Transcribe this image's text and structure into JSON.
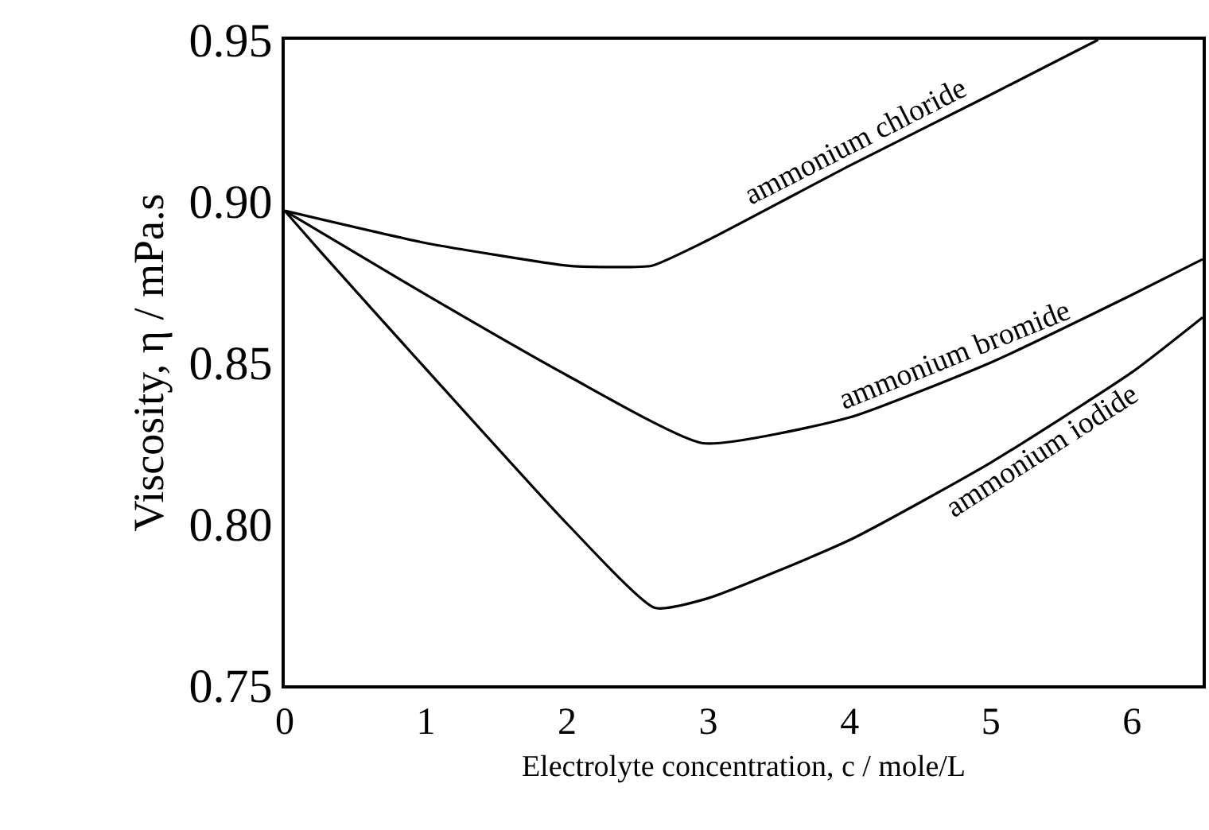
{
  "chart_data": {
    "type": "line",
    "xlabel": "Electrolyte concentration, c / mole/L",
    "ylabel": "Viscosity, η / mPa.s",
    "xlim": [
      0,
      6.5
    ],
    "xticks": [
      0,
      1,
      2,
      3,
      4,
      5,
      6
    ],
    "ylim": [
      0.75,
      0.95
    ],
    "yticks": [
      {
        "value": 0.75,
        "label": "0.75"
      },
      {
        "value": 0.8,
        "label": "0.80"
      },
      {
        "value": 0.85,
        "label": "0.85"
      },
      {
        "value": 0.9,
        "label": "0.90"
      },
      {
        "value": 0.95,
        "label": "0.95"
      }
    ],
    "legend": false,
    "line_style": "solid",
    "marker": "none",
    "series": [
      {
        "name": "ammonium chloride",
        "color": "#000000",
        "x": [
          0,
          1,
          2,
          2.25,
          2.6,
          3,
          4,
          5,
          5.76
        ],
        "values": [
          0.897,
          0.887,
          0.88,
          0.8796,
          0.88,
          0.888,
          0.911,
          0.933,
          0.95
        ]
      },
      {
        "name": "ammonium bromide",
        "color": "#000000",
        "x": [
          0,
          1,
          2,
          2.96,
          4,
          5,
          6,
          6.5
        ],
        "values": [
          0.897,
          0.871,
          0.846,
          0.825,
          0.833,
          0.85,
          0.871,
          0.882
        ]
      },
      {
        "name": "ammonium iodide",
        "color": "#000000",
        "x": [
          0,
          0.24,
          1,
          2,
          2.62,
          3,
          4,
          5,
          6,
          6.5
        ],
        "values": [
          0.897,
          0.885,
          0.848,
          0.8,
          0.774,
          0.777,
          0.795,
          0.819,
          0.847,
          0.864
        ]
      }
    ]
  }
}
